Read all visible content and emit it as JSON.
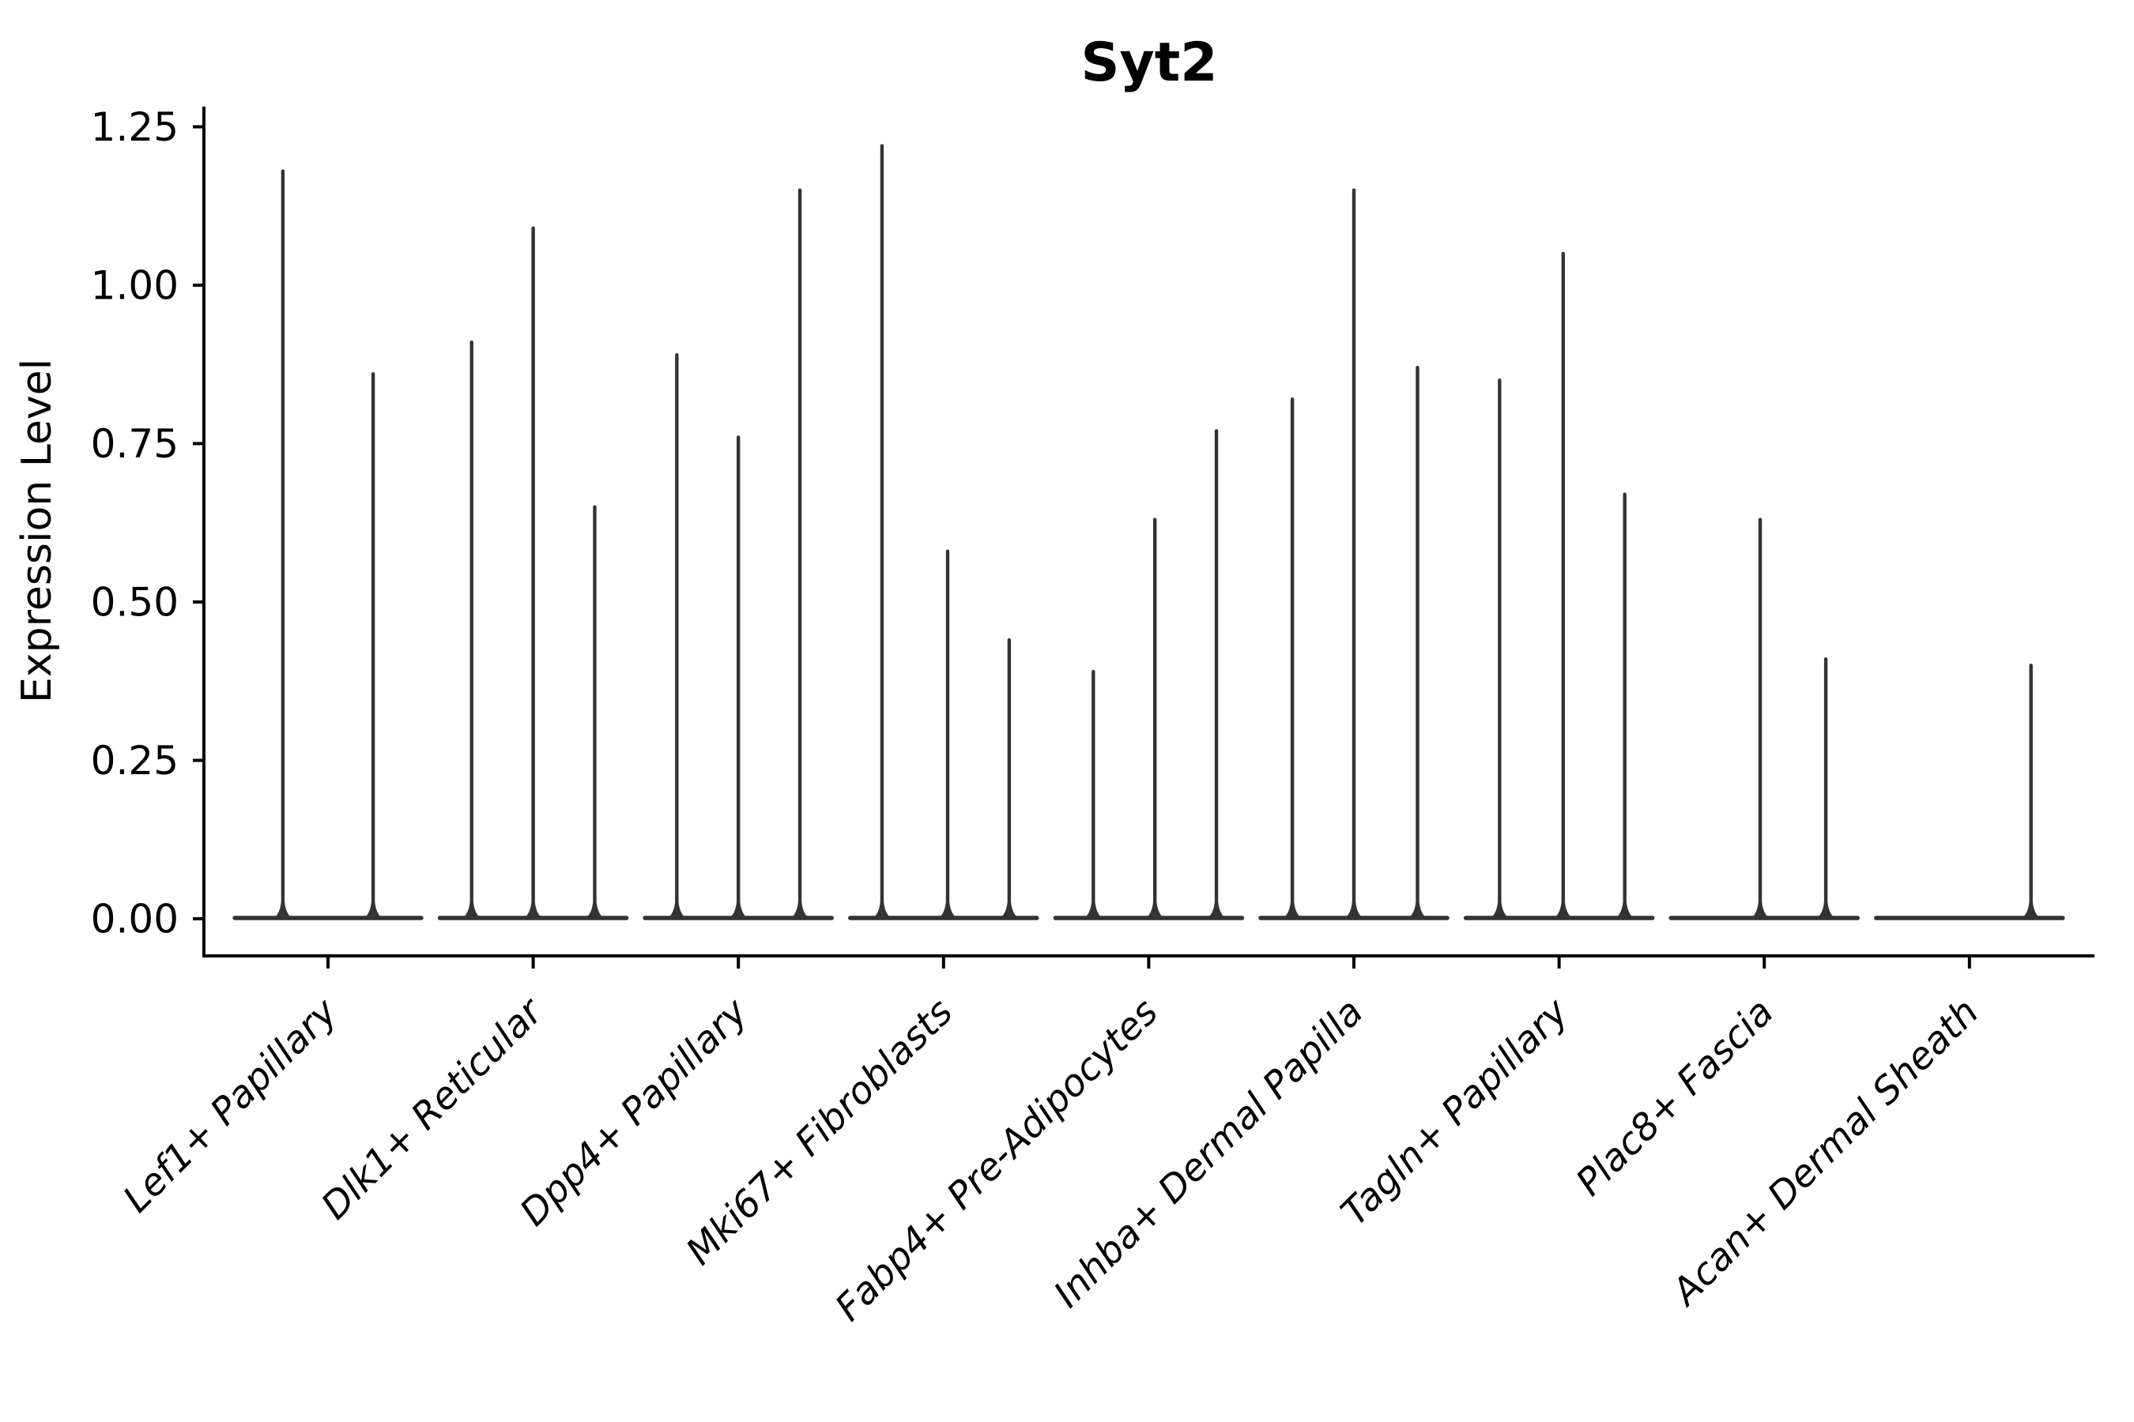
{
  "figure": {
    "background": "#ffffff",
    "axis_color": "#000000",
    "violin_color": "#333333"
  },
  "chart_data": {
    "type": "violin",
    "title": "Syt2",
    "xlabel": "",
    "ylabel": "Expression Level",
    "legend": "none",
    "grid": false,
    "ylim": [
      -0.06,
      1.28
    ],
    "ytick_labels": [
      "0.00",
      "0.25",
      "0.50",
      "0.75",
      "1.00",
      "1.25"
    ],
    "ytick_values": [
      0,
      0.25,
      0.5,
      0.75,
      1.0,
      1.25
    ],
    "categories": [
      "Lef1+ Papillary",
      "Dlk1+ Reticular",
      "Dpp4+ Papillary",
      "Mki67+ Fibroblasts",
      "Fabp4+ Pre-Adipocytes",
      "Inhba+ Dermal Papilla",
      "Tagln+ Papillary",
      "Plac8+ Fascia",
      "Acan+ Dermal Sheath"
    ],
    "violin_span": 0.91,
    "groups": [
      {
        "category": "Lef1+ Papillary",
        "spikes": [
          {
            "offset": -0.22,
            "value": 1.18
          },
          {
            "offset": 0.22,
            "value": 0.86
          }
        ]
      },
      {
        "category": "Dlk1+ Reticular",
        "spikes": [
          {
            "offset": -0.3,
            "value": 0.91
          },
          {
            "offset": 0.0,
            "value": 1.09
          },
          {
            "offset": 0.3,
            "value": 0.65
          }
        ]
      },
      {
        "category": "Dpp4+ Papillary",
        "spikes": [
          {
            "offset": -0.3,
            "value": 0.89
          },
          {
            "offset": 0.0,
            "value": 0.76
          },
          {
            "offset": 0.3,
            "value": 1.15
          }
        ]
      },
      {
        "category": "Mki67+ Fibroblasts",
        "spikes": [
          {
            "offset": -0.3,
            "value": 1.22
          },
          {
            "offset": 0.02,
            "value": 0.58
          },
          {
            "offset": 0.32,
            "value": 0.44
          }
        ]
      },
      {
        "category": "Fabp4+ Pre-Adipocytes",
        "spikes": [
          {
            "offset": -0.27,
            "value": 0.39
          },
          {
            "offset": 0.03,
            "value": 0.63
          },
          {
            "offset": 0.33,
            "value": 0.77
          }
        ]
      },
      {
        "category": "Inhba+ Dermal Papilla",
        "spikes": [
          {
            "offset": -0.3,
            "value": 0.82
          },
          {
            "offset": 0.0,
            "value": 1.15
          },
          {
            "offset": 0.31,
            "value": 0.87
          }
        ]
      },
      {
        "category": "Tagln+ Papillary",
        "spikes": [
          {
            "offset": -0.29,
            "value": 0.85
          },
          {
            "offset": 0.02,
            "value": 1.05
          },
          {
            "offset": 0.32,
            "value": 0.67
          }
        ]
      },
      {
        "category": "Plac8+ Fascia",
        "spikes": [
          {
            "offset": -0.02,
            "value": 0.63
          },
          {
            "offset": 0.3,
            "value": 0.41
          }
        ]
      },
      {
        "category": "Acan+ Dermal Sheath",
        "spikes": [
          {
            "offset": 0.3,
            "value": 0.4
          }
        ]
      }
    ]
  }
}
